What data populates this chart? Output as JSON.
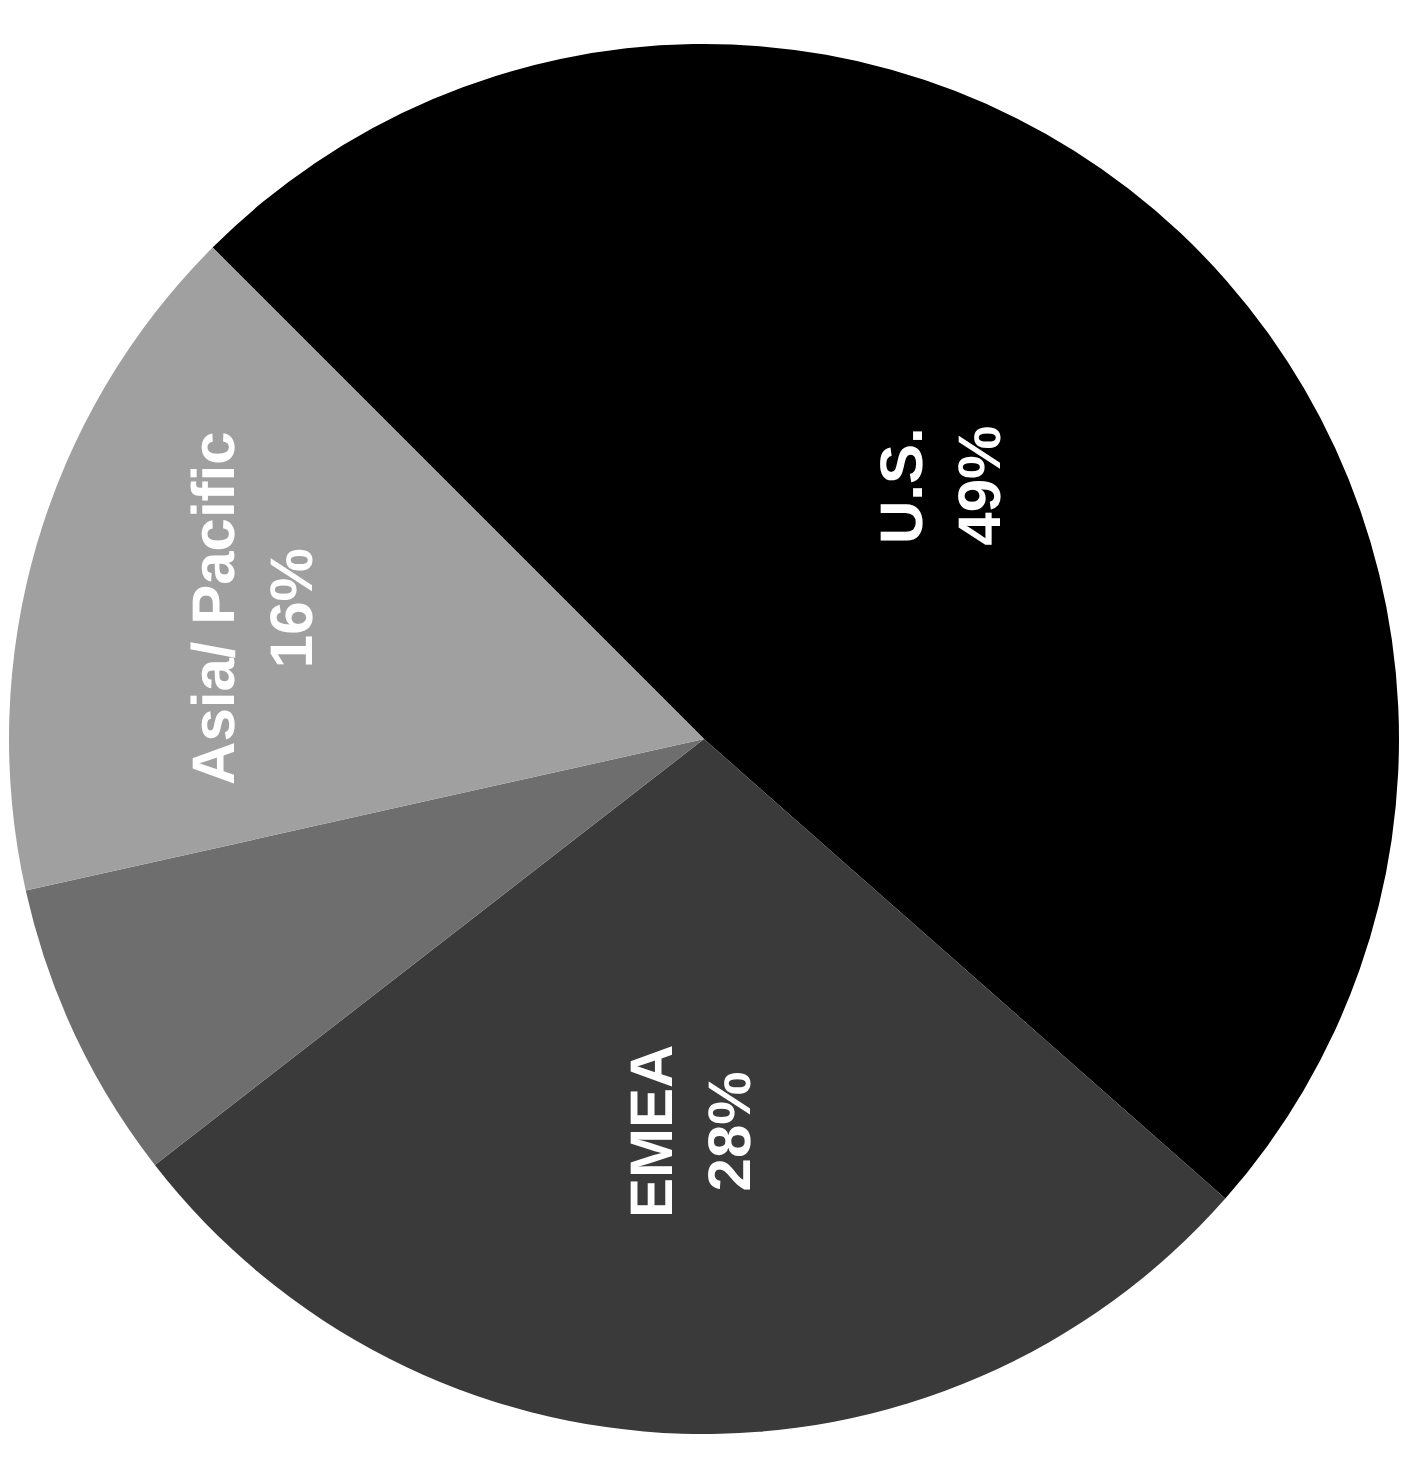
{
  "chart_data": {
    "type": "pie",
    "categories": [
      "U.S.",
      "EMEA",
      null,
      "Asia/ Pacific"
    ],
    "values": [
      49,
      28,
      7,
      16
    ],
    "value_labels": [
      "49%",
      "28%",
      null,
      "16%"
    ],
    "colors": [
      "#000000",
      "#3a3a3a",
      "#6e6e6e",
      "#a0a0a0"
    ],
    "legend": false
  }
}
